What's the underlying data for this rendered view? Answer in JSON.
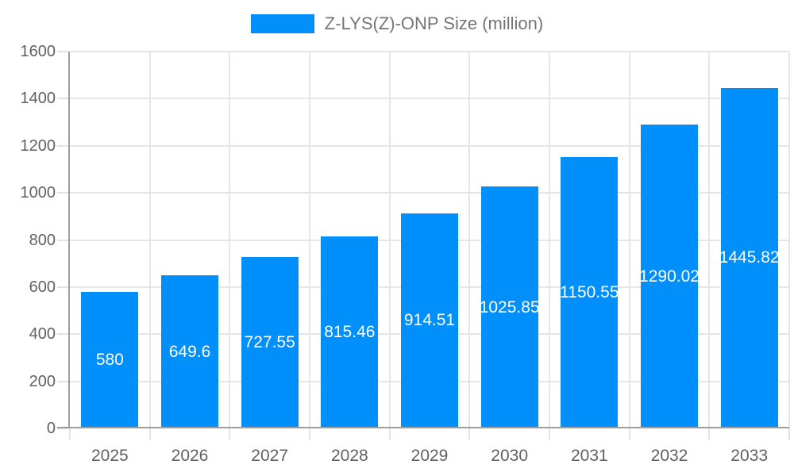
{
  "legend": {
    "label": "Z-LYS(Z)-ONP Size (million)"
  },
  "chart_data": {
    "type": "bar",
    "title": "Z-LYS(Z)-ONP Size (million)",
    "categories": [
      "2025",
      "2026",
      "2027",
      "2028",
      "2029",
      "2030",
      "2031",
      "2032",
      "2033"
    ],
    "series": [
      {
        "name": "Z-LYS(Z)-ONP Size (million)",
        "values": [
          580,
          649.6,
          727.55,
          815.46,
          914.51,
          1025.85,
          1150.55,
          1290.02,
          1445.82
        ]
      }
    ],
    "value_labels": [
      "580",
      "649.6",
      "727.55",
      "815.46",
      "914.51",
      "1025.85",
      "1150.55",
      "1290.02",
      "1445.82"
    ],
    "xlabel": "",
    "ylabel": "",
    "ylim": [
      0,
      1600
    ],
    "ytick_step": 200,
    "ytick_labels": [
      "0",
      "200",
      "400",
      "600",
      "800",
      "1000",
      "1200",
      "1400",
      "1600"
    ],
    "grid": true,
    "legend_position": "top",
    "colors": {
      "bar": "#008FFB",
      "bar_value_label": "#ffffff",
      "axis_line": "#9e9e9e",
      "gridline": "#e6e6e6",
      "tick": "#e2e2e2",
      "axis_label": "#616161",
      "legend_text": "#757575"
    }
  }
}
